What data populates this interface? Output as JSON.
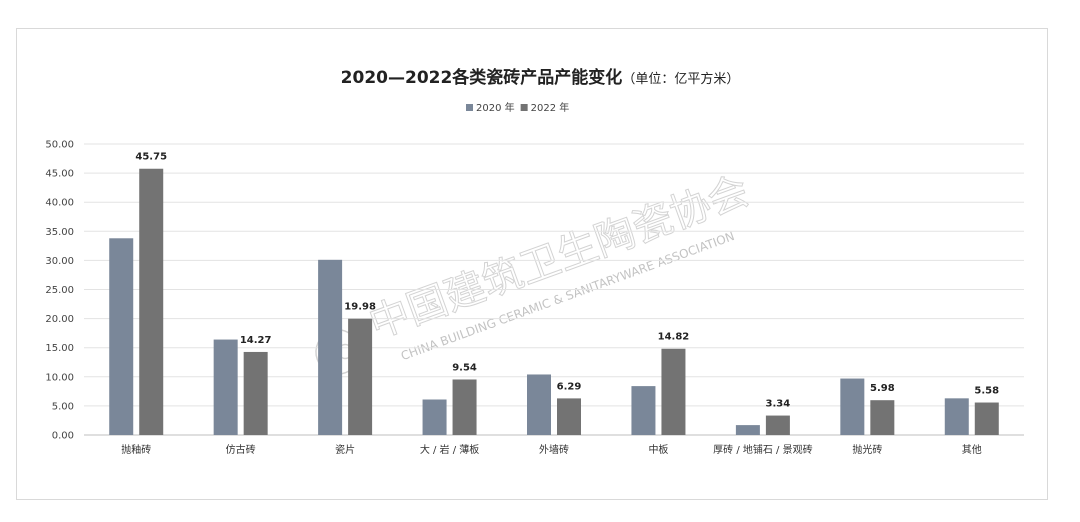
{
  "watermark": {
    "cn": "中国建筑卫生陶瓷协会",
    "en": "CHINA BUILDING CERAMIC & SANITARYWARE ASSOCIATION"
  },
  "chart_data": {
    "type": "bar",
    "title": "2020—2022各类瓷砖产品产能变化",
    "subtitle": "（单位：亿平方米）",
    "categories": [
      "抛釉砖",
      "仿古砖",
      "瓷片",
      "大 / 岩 / 薄板",
      "外墙砖",
      "中板",
      "厚砖 / 地铺石 / 景观砖",
      "抛光砖",
      "其他"
    ],
    "series": [
      {
        "name": "2020 年",
        "color": "#7a8799",
        "values": [
          33.8,
          16.4,
          30.1,
          6.1,
          10.4,
          8.4,
          1.7,
          9.7,
          6.3
        ],
        "labels": [
          "",
          "",
          "",
          "",
          "",
          "",
          "",
          "",
          ""
        ]
      },
      {
        "name": "2022 年",
        "color": "#737373",
        "values": [
          45.75,
          14.27,
          19.98,
          9.54,
          6.29,
          14.82,
          3.34,
          5.98,
          5.58
        ],
        "labels": [
          "45.75",
          "14.27",
          "19.98",
          "9.54",
          "6.29",
          "14.82",
          "3.34",
          "5.98",
          "5.58"
        ]
      }
    ],
    "ylim": [
      0,
      50
    ],
    "yticks": [
      "0.00",
      "5.00",
      "10.00",
      "15.00",
      "20.00",
      "25.00",
      "30.00",
      "35.00",
      "40.00",
      "45.00",
      "50.00"
    ],
    "grid": true,
    "legend_position": "top-center"
  }
}
